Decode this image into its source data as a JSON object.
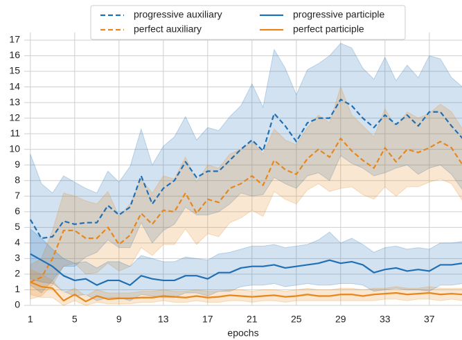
{
  "chart_data": {
    "type": "line",
    "xlabel": "epochs",
    "x": [
      1,
      2,
      3,
      4,
      5,
      6,
      7,
      8,
      9,
      10,
      11,
      12,
      13,
      14,
      15,
      16,
      17,
      18,
      19,
      20,
      21,
      22,
      23,
      24,
      25,
      26,
      27,
      28,
      29,
      30,
      31,
      32,
      33,
      34,
      35,
      36,
      37,
      38,
      39,
      40
    ],
    "xlim": [
      0.45,
      39.95
    ],
    "xticks": [
      1,
      5,
      9,
      13,
      17,
      21,
      25,
      29,
      33,
      37
    ],
    "ylim": [
      0,
      17.5
    ],
    "yticks": [
      0,
      1,
      2,
      3,
      4,
      5,
      6,
      7,
      8,
      9,
      10,
      11,
      12,
      13,
      14,
      15,
      16,
      17
    ],
    "grid": true,
    "legend": "top",
    "series": [
      {
        "name": "progressive auxiliary",
        "color": "#1f6fb4",
        "dashed": true,
        "values": [
          5.5,
          4.3,
          4.4,
          5.4,
          5.2,
          5.3,
          5.3,
          6.4,
          5.8,
          6.3,
          8.3,
          6.5,
          7.5,
          8.0,
          9.2,
          8.2,
          8.6,
          8.6,
          9.3,
          10.0,
          10.6,
          9.9,
          12.3,
          11.5,
          10.5,
          11.7,
          12.0,
          12.0,
          13.2,
          12.8,
          12.0,
          11.4,
          12.2,
          11.6,
          12.2,
          11.5,
          12.4,
          12.4,
          11.5,
          10.7
        ],
        "upper": [
          9.7,
          7.8,
          7.2,
          8.3,
          7.9,
          7.5,
          7.2,
          8.6,
          7.9,
          8.9,
          11.3,
          9.0,
          10.2,
          10.8,
          12.1,
          10.6,
          11.4,
          11.2,
          12.1,
          12.8,
          14.2,
          12.7,
          16.4,
          15.2,
          13.5,
          15.1,
          15.5,
          16.0,
          16.8,
          16.5,
          15.2,
          14.5,
          15.9,
          14.4,
          15.4,
          14.6,
          16.0,
          15.8,
          14.6,
          14.0
        ],
        "lower": [
          1.3,
          0.8,
          1.6,
          2.5,
          2.5,
          3.1,
          3.4,
          4.2,
          3.7,
          3.7,
          5.3,
          4.0,
          4.8,
          5.2,
          6.3,
          5.8,
          5.8,
          6.0,
          6.5,
          7.2,
          7.0,
          7.1,
          8.2,
          7.8,
          7.5,
          8.3,
          8.5,
          8.0,
          9.6,
          9.1,
          8.8,
          8.3,
          8.5,
          8.8,
          9.0,
          8.4,
          8.8,
          9.0,
          8.4,
          7.4
        ]
      },
      {
        "name": "perfect auxiliary",
        "color": "#e8861a",
        "dashed": true,
        "values": [
          1.5,
          1.8,
          3.0,
          4.8,
          4.8,
          4.3,
          4.3,
          5.0,
          3.9,
          4.5,
          5.9,
          5.2,
          6.1,
          6.0,
          7.2,
          5.9,
          6.8,
          6.6,
          7.5,
          7.8,
          8.3,
          7.7,
          9.3,
          8.7,
          8.4,
          9.4,
          10.0,
          9.5,
          10.7,
          9.9,
          9.3,
          8.8,
          10.1,
          9.2,
          10.0,
          9.8,
          10.1,
          10.5,
          10.1,
          9.0
        ],
        "upper": [
          2.6,
          3.0,
          4.8,
          7.2,
          7.0,
          6.7,
          6.5,
          7.3,
          5.7,
          6.5,
          8.1,
          7.2,
          8.3,
          8.1,
          9.5,
          7.9,
          9.0,
          8.8,
          9.7,
          10.0,
          10.5,
          9.7,
          11.3,
          10.6,
          10.3,
          11.4,
          12.2,
          11.7,
          14.0,
          12.2,
          11.5,
          10.8,
          12.6,
          11.4,
          12.4,
          12.0,
          12.3,
          12.9,
          12.4,
          11.3
        ],
        "lower": [
          0.4,
          0.6,
          1.3,
          2.5,
          2.7,
          2.0,
          2.1,
          2.7,
          2.2,
          2.5,
          3.7,
          3.2,
          3.9,
          3.9,
          4.9,
          3.9,
          4.6,
          4.4,
          5.3,
          5.6,
          6.1,
          5.7,
          7.3,
          6.8,
          6.5,
          7.4,
          7.8,
          7.3,
          7.5,
          7.6,
          7.1,
          6.8,
          7.6,
          7.0,
          7.6,
          7.6,
          7.9,
          8.1,
          7.8,
          6.7
        ]
      },
      {
        "name": "progressive participle",
        "color": "#1f6fb4",
        "dashed": false,
        "values": [
          3.3,
          2.9,
          2.5,
          1.9,
          1.6,
          1.7,
          1.3,
          1.6,
          1.6,
          1.3,
          1.9,
          1.7,
          1.6,
          1.6,
          1.9,
          1.9,
          1.7,
          2.1,
          2.1,
          2.4,
          2.5,
          2.5,
          2.6,
          2.4,
          2.5,
          2.6,
          2.7,
          2.9,
          2.7,
          2.8,
          2.6,
          2.1,
          2.3,
          2.4,
          2.2,
          2.3,
          2.2,
          2.6,
          2.6,
          2.7
        ],
        "upper": [
          4.9,
          4.3,
          3.6,
          3.0,
          2.7,
          2.8,
          2.4,
          2.8,
          2.8,
          2.5,
          3.2,
          3.0,
          2.8,
          2.8,
          3.1,
          3.0,
          2.9,
          3.3,
          3.4,
          3.6,
          3.8,
          3.8,
          3.9,
          3.7,
          3.8,
          3.9,
          4.2,
          4.7,
          4.0,
          4.3,
          3.9,
          3.4,
          3.7,
          3.8,
          3.6,
          3.7,
          3.6,
          4.0,
          4.0,
          4.1
        ],
        "lower": [
          1.7,
          1.5,
          1.4,
          0.9,
          0.6,
          0.7,
          0.3,
          0.5,
          0.5,
          0.3,
          0.7,
          0.6,
          0.5,
          0.5,
          0.8,
          0.8,
          0.6,
          0.9,
          0.9,
          1.2,
          1.3,
          1.3,
          1.4,
          1.2,
          1.3,
          1.4,
          1.3,
          1.3,
          1.4,
          1.4,
          1.3,
          0.9,
          1.0,
          1.1,
          1.0,
          1.0,
          0.9,
          1.3,
          1.3,
          1.4
        ]
      },
      {
        "name": "perfect participle",
        "color": "#e8861a",
        "dashed": false,
        "values": [
          1.5,
          1.2,
          1.1,
          0.3,
          0.7,
          0.25,
          0.6,
          0.4,
          0.45,
          0.45,
          0.5,
          0.5,
          0.6,
          0.55,
          0.5,
          0.6,
          0.5,
          0.55,
          0.65,
          0.6,
          0.55,
          0.6,
          0.65,
          0.55,
          0.6,
          0.7,
          0.6,
          0.6,
          0.7,
          0.7,
          0.6,
          0.7,
          0.75,
          0.8,
          0.7,
          0.75,
          0.8,
          0.7,
          0.75,
          0.7
        ],
        "upper": [
          2.3,
          2.0,
          1.6,
          0.8,
          1.1,
          0.6,
          1.0,
          0.8,
          0.8,
          0.8,
          0.9,
          0.9,
          1.0,
          0.9,
          0.9,
          1.0,
          0.9,
          0.9,
          1.0,
          1.0,
          0.9,
          1.0,
          1.0,
          0.9,
          1.0,
          1.1,
          1.0,
          1.0,
          1.1,
          1.1,
          1.0,
          1.1,
          1.1,
          1.2,
          1.1,
          1.1,
          1.2,
          1.1,
          1.1,
          1.1
        ],
        "lower": [
          0.7,
          0.5,
          0.5,
          0.0,
          0.3,
          0.0,
          0.2,
          0.1,
          0.1,
          0.1,
          0.2,
          0.2,
          0.3,
          0.2,
          0.2,
          0.3,
          0.2,
          0.2,
          0.3,
          0.3,
          0.2,
          0.3,
          0.3,
          0.2,
          0.3,
          0.3,
          0.3,
          0.3,
          0.3,
          0.3,
          0.3,
          0.3,
          0.4,
          0.4,
          0.3,
          0.4,
          0.4,
          0.3,
          0.4,
          0.3
        ]
      }
    ]
  }
}
